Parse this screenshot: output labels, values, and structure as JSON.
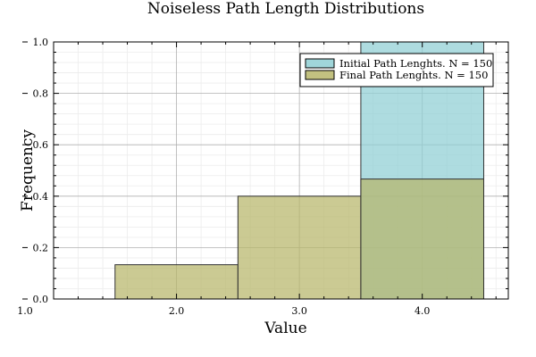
{
  "chart_data": {
    "type": "bar",
    "title": "Noiseless Path Length Distributions",
    "xlabel": "Value",
    "ylabel": "Frequency",
    "xlim": [
      1.0,
      4.7
    ],
    "ylim": [
      0.0,
      1.0
    ],
    "x_ticks": [
      {
        "value": 1.0,
        "label": "1.0"
      },
      {
        "value": 2.0,
        "label": "2.0"
      },
      {
        "value": 3.0,
        "label": "3.0"
      },
      {
        "value": 4.0,
        "label": "4.0"
      }
    ],
    "y_ticks": [
      {
        "value": 0.0,
        "label": "0.0"
      },
      {
        "value": 0.2,
        "label": "0.2"
      },
      {
        "value": 0.4,
        "label": "0.4"
      },
      {
        "value": 0.6,
        "label": "0.6"
      },
      {
        "value": 0.8,
        "label": "0.8"
      },
      {
        "value": 1.0,
        "label": "1.0"
      }
    ],
    "grid": true,
    "legend_position": "top-right",
    "series": [
      {
        "name": "Initial Path Lenghts. N = 150",
        "color": "#8fcfd4",
        "bins": [
          {
            "x0": 3.5,
            "x1": 4.5,
            "value": 1.0
          }
        ]
      },
      {
        "name": "Final Path Lenghts. N = 150",
        "color": "#b7b66a",
        "bins": [
          {
            "x0": 1.5,
            "x1": 2.5,
            "value": 0.1333
          },
          {
            "x0": 2.5,
            "x1": 3.5,
            "value": 0.4
          },
          {
            "x0": 3.5,
            "x1": 4.5,
            "value": 0.4667
          }
        ]
      }
    ]
  }
}
